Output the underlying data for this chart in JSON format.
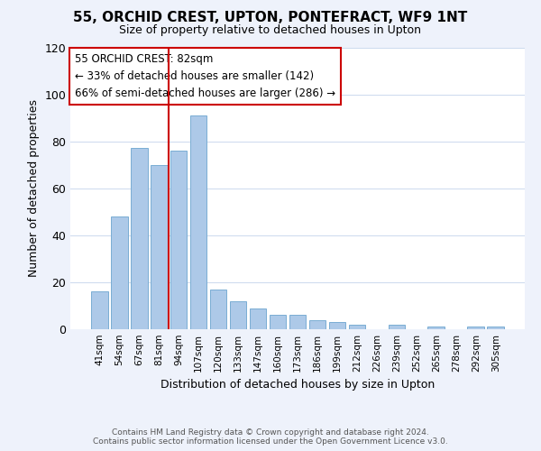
{
  "title": "55, ORCHID CREST, UPTON, PONTEFRACT, WF9 1NT",
  "subtitle": "Size of property relative to detached houses in Upton",
  "xlabel": "Distribution of detached houses by size in Upton",
  "ylabel": "Number of detached properties",
  "bar_labels": [
    "41sqm",
    "54sqm",
    "67sqm",
    "81sqm",
    "94sqm",
    "107sqm",
    "120sqm",
    "133sqm",
    "147sqm",
    "160sqm",
    "173sqm",
    "186sqm",
    "199sqm",
    "212sqm",
    "226sqm",
    "239sqm",
    "252sqm",
    "265sqm",
    "278sqm",
    "292sqm",
    "305sqm"
  ],
  "bar_values": [
    16,
    48,
    77,
    70,
    76,
    91,
    17,
    12,
    9,
    6,
    6,
    4,
    3,
    2,
    0,
    2,
    0,
    1,
    0,
    1,
    1
  ],
  "bar_color": "#adc9e8",
  "bar_edge_color": "#7aadd4",
  "annotation_title": "55 ORCHID CREST: 82sqm",
  "annotation_line1": "← 33% of detached houses are smaller (142)",
  "annotation_line2": "66% of semi-detached houses are larger (286) →",
  "annotation_box_color": "#ffffff",
  "annotation_box_edge": "#cc0000",
  "vline_color": "#cc0000",
  "ylim": [
    0,
    120
  ],
  "yticks": [
    0,
    20,
    40,
    60,
    80,
    100,
    120
  ],
  "footer_line1": "Contains HM Land Registry data © Crown copyright and database right 2024.",
  "footer_line2": "Contains public sector information licensed under the Open Government Licence v3.0.",
  "bg_color": "#eef2fb",
  "plot_bg_color": "#ffffff",
  "grid_color": "#ccd9ee"
}
